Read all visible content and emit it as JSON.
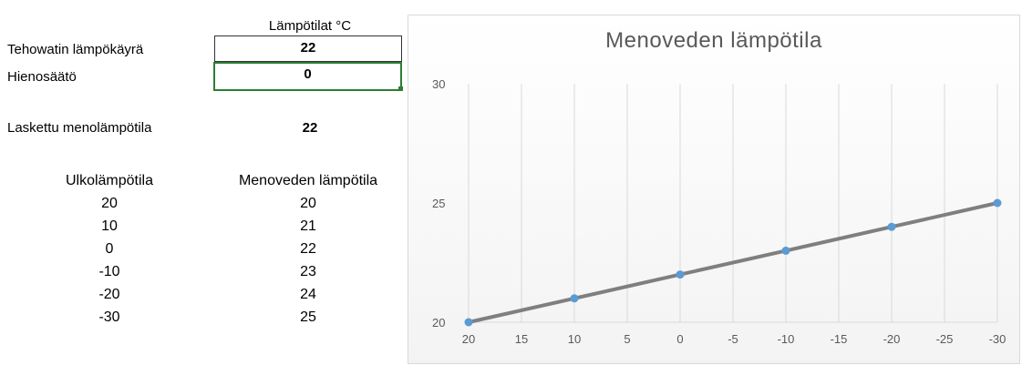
{
  "sheet": {
    "header_label": "Lämpötilat °C",
    "rows": [
      {
        "label": "Tehowatin lämpökäyrä",
        "value": "22"
      },
      {
        "label": "Hienosäätö",
        "value": "0"
      }
    ],
    "calculated": {
      "label": "Laskettu menolämpötila",
      "value": "22"
    },
    "table": {
      "headers": [
        "Ulkolämpötila",
        "Menoveden lämpötila"
      ],
      "outdoor": [
        "20",
        "10",
        "0",
        "-10",
        "-20",
        "-30"
      ],
      "water": [
        "20",
        "21",
        "22",
        "23",
        "24",
        "25"
      ]
    }
  },
  "chart_data": {
    "type": "line",
    "title": "Menoveden lämpötila",
    "x": [
      20,
      10,
      0,
      -10,
      -20,
      -30
    ],
    "series": [
      {
        "values": [
          20,
          21,
          22,
          23,
          24,
          25
        ]
      }
    ],
    "xlim": [
      20,
      -30
    ],
    "xticks": [
      20,
      15,
      10,
      5,
      0,
      -5,
      -10,
      -15,
      -20,
      -25,
      -30
    ],
    "ylim": [
      20,
      30
    ],
    "yticks": [
      20,
      25,
      30
    ],
    "grid": "vertical",
    "colors": {
      "line": "#7f7f7f",
      "marker": "#5b9bd5"
    }
  }
}
